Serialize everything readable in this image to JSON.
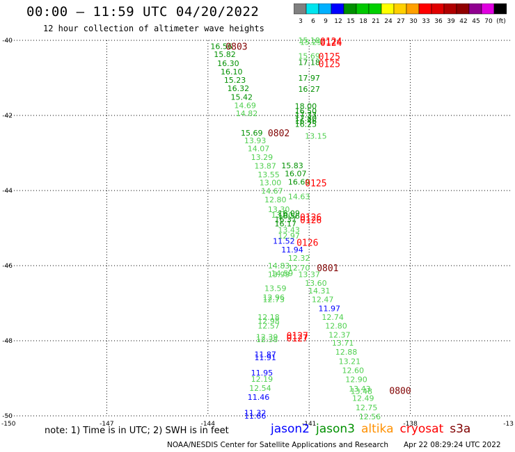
{
  "header": {
    "title": "00:00 – 11:59 UTC 04/20/2022",
    "subtitle": "12 hour collection of altimeter wave heights"
  },
  "color_scale": {
    "labels": [
      "3",
      "6",
      "9",
      "12",
      "15",
      "18",
      "21",
      "24",
      "27",
      "30",
      "33",
      "36",
      "39",
      "42",
      "45",
      "70",
      "(ft)"
    ],
    "colors": [
      "#808080",
      "#00e5ee",
      "#00b0ff",
      "#0000ff",
      "#009000",
      "#00c800",
      "#00d000",
      "#ffff00",
      "#ffd000",
      "#ffa000",
      "#ff0000",
      "#e00000",
      "#b00000",
      "#900000",
      "#900090",
      "#e000e0",
      "#000000"
    ]
  },
  "note": "note:  1) Time is in UTC; 2) SWH is in feet",
  "satellites": [
    {
      "name": "jason2",
      "color": "#0000ff"
    },
    {
      "name": "jason3",
      "color": "#009000"
    },
    {
      "name": "altika",
      "color": "#ff9000"
    },
    {
      "name": "cryosat",
      "color": "#ff0000"
    },
    {
      "name": "s3a",
      "color": "#800000"
    }
  ],
  "footer": {
    "credit": "NOAA/NESDIS Center for Satellite Applications and Research",
    "timestamp": "Apr 22 08:29:24 UTC 2022"
  },
  "chart_data": {
    "type": "scatter",
    "xlim": [
      -150,
      -135
    ],
    "ylim": [
      -50,
      -40
    ],
    "x_ticks": [
      -147,
      -144,
      -141,
      -138
    ],
    "x_tick_labels": [
      "-147",
      "-144",
      "-141",
      "-138"
    ],
    "y_ticks": [
      -40,
      -42,
      -44,
      -46,
      -48,
      -50
    ],
    "y_tick_labels": [
      "-40",
      "-42",
      "-44",
      "-46",
      "-48",
      "-50"
    ],
    "corner_labels": {
      "left": "-150",
      "right": "-13"
    },
    "grid": true,
    "points": [
      {
        "lon": -143.6,
        "lat": -40.16,
        "v": "16.56",
        "c": "#009000"
      },
      {
        "lon": -143.5,
        "lat": -40.37,
        "v": "15.82",
        "c": "#009000"
      },
      {
        "lon": -143.4,
        "lat": -40.61,
        "v": "16.30",
        "c": "#009000"
      },
      {
        "lon": -143.3,
        "lat": -40.83,
        "v": "16.10",
        "c": "#009000"
      },
      {
        "lon": -143.2,
        "lat": -41.06,
        "v": "15.23",
        "c": "#009000"
      },
      {
        "lon": -143.1,
        "lat": -41.28,
        "v": "16.32",
        "c": "#009000"
      },
      {
        "lon": -143.0,
        "lat": -41.51,
        "v": "15.42",
        "c": "#009000"
      },
      {
        "lon": -142.9,
        "lat": -41.73,
        "v": "14.69",
        "c": "#50d050"
      },
      {
        "lon": -142.85,
        "lat": -41.94,
        "v": "14.82",
        "c": "#50d050"
      },
      {
        "lon": -141.0,
        "lat": -40.0,
        "v": "15.18",
        "c": "#50d050"
      },
      {
        "lon": -140.95,
        "lat": -40.05,
        "v": "15.29",
        "c": "#50d050"
      },
      {
        "lon": -141.0,
        "lat": -40.42,
        "v": "15.69",
        "c": "#50d050"
      },
      {
        "lon": -141.0,
        "lat": -40.58,
        "v": "17.18",
        "c": "#009000"
      },
      {
        "lon": -141.0,
        "lat": -41.0,
        "v": "17.97",
        "c": "#009000"
      },
      {
        "lon": -141.0,
        "lat": -41.3,
        "v": "16.27",
        "c": "#009000"
      },
      {
        "lon": -141.1,
        "lat": -41.75,
        "v": "18.00",
        "c": "#009000"
      },
      {
        "lon": -141.1,
        "lat": -41.88,
        "v": "16.50",
        "c": "#009000"
      },
      {
        "lon": -141.1,
        "lat": -41.98,
        "v": "17.33",
        "c": "#009000"
      },
      {
        "lon": -141.1,
        "lat": -42.07,
        "v": "17.80",
        "c": "#009000"
      },
      {
        "lon": -141.1,
        "lat": -42.15,
        "v": "16.46",
        "c": "#009000"
      },
      {
        "lon": -141.1,
        "lat": -42.23,
        "v": "16.25",
        "c": "#009000"
      },
      {
        "lon": -140.8,
        "lat": -42.55,
        "v": "13.15",
        "c": "#50d050"
      },
      {
        "lon": -142.7,
        "lat": -42.46,
        "v": "15.69",
        "c": "#009000"
      },
      {
        "lon": -142.6,
        "lat": -42.67,
        "v": "13.93",
        "c": "#50d050"
      },
      {
        "lon": -142.5,
        "lat": -42.88,
        "v": "14.07",
        "c": "#50d050"
      },
      {
        "lon": -142.4,
        "lat": -43.11,
        "v": "13.29",
        "c": "#50d050"
      },
      {
        "lon": -142.3,
        "lat": -43.34,
        "v": "13.87",
        "c": "#50d050"
      },
      {
        "lon": -142.2,
        "lat": -43.57,
        "v": "13.55",
        "c": "#50d050"
      },
      {
        "lon": -142.15,
        "lat": -43.79,
        "v": "13.00",
        "c": "#50d050"
      },
      {
        "lon": -142.1,
        "lat": -44.01,
        "v": "14.67",
        "c": "#50d050"
      },
      {
        "lon": -142.0,
        "lat": -44.24,
        "v": "12.80",
        "c": "#50d050"
      },
      {
        "lon": -141.5,
        "lat": -43.33,
        "v": "15.83",
        "c": "#009000"
      },
      {
        "lon": -141.4,
        "lat": -43.55,
        "v": "16.07",
        "c": "#009000"
      },
      {
        "lon": -141.3,
        "lat": -43.77,
        "v": "16.69",
        "c": "#009000"
      },
      {
        "lon": -141.3,
        "lat": -44.16,
        "v": "14.63",
        "c": "#50d050"
      },
      {
        "lon": -141.9,
        "lat": -44.5,
        "v": "13.30",
        "c": "#50d050"
      },
      {
        "lon": -141.8,
        "lat": -44.65,
        "v": "13.00",
        "c": "#50d050"
      },
      {
        "lon": -141.6,
        "lat": -44.6,
        "v": "16.09",
        "c": "#009000"
      },
      {
        "lon": -141.6,
        "lat": -44.68,
        "v": "16.56",
        "c": "#009000"
      },
      {
        "lon": -141.7,
        "lat": -44.77,
        "v": "16.37",
        "c": "#009000"
      },
      {
        "lon": -141.7,
        "lat": -44.88,
        "v": "16.17",
        "c": "#009000"
      },
      {
        "lon": -141.6,
        "lat": -45.05,
        "v": "13.43",
        "c": "#50d050"
      },
      {
        "lon": -141.6,
        "lat": -45.2,
        "v": "12.97",
        "c": "#50d050"
      },
      {
        "lon": -141.75,
        "lat": -45.34,
        "v": "11.52",
        "c": "#0000ff"
      },
      {
        "lon": -141.5,
        "lat": -45.57,
        "v": "11.94",
        "c": "#0000ff"
      },
      {
        "lon": -141.3,
        "lat": -45.8,
        "v": "12.32",
        "c": "#50d050"
      },
      {
        "lon": -141.9,
        "lat": -46.0,
        "v": "14.83",
        "c": "#50d050"
      },
      {
        "lon": -141.3,
        "lat": -46.06,
        "v": "12.70",
        "c": "#50d050"
      },
      {
        "lon": -141.8,
        "lat": -46.2,
        "v": "14.59",
        "c": "#50d050"
      },
      {
        "lon": -141.9,
        "lat": -46.23,
        "v": "13.99",
        "c": "#50d050"
      },
      {
        "lon": -141.0,
        "lat": -46.23,
        "v": "13.37",
        "c": "#50d050"
      },
      {
        "lon": -140.8,
        "lat": -46.46,
        "v": "13.60",
        "c": "#50d050"
      },
      {
        "lon": -140.7,
        "lat": -46.67,
        "v": "14.31",
        "c": "#50d050"
      },
      {
        "lon": -140.6,
        "lat": -46.9,
        "v": "12.47",
        "c": "#50d050"
      },
      {
        "lon": -140.4,
        "lat": -47.14,
        "v": "11.97",
        "c": "#0000ff"
      },
      {
        "lon": -140.3,
        "lat": -47.37,
        "v": "12.74",
        "c": "#50d050"
      },
      {
        "lon": -140.2,
        "lat": -47.6,
        "v": "12.80",
        "c": "#50d050"
      },
      {
        "lon": -140.1,
        "lat": -47.84,
        "v": "12.37",
        "c": "#50d050"
      },
      {
        "lon": -140.0,
        "lat": -48.06,
        "v": "13.71",
        "c": "#50d050"
      },
      {
        "lon": -142.0,
        "lat": -46.6,
        "v": "13.59",
        "c": "#50d050"
      },
      {
        "lon": -142.05,
        "lat": -46.84,
        "v": "12.96",
        "c": "#50d050"
      },
      {
        "lon": -142.05,
        "lat": -46.9,
        "v": "12.73",
        "c": "#50d050"
      },
      {
        "lon": -142.2,
        "lat": -47.37,
        "v": "12.18",
        "c": "#50d050"
      },
      {
        "lon": -142.2,
        "lat": -47.47,
        "v": "12.98",
        "c": "#50d050"
      },
      {
        "lon": -142.2,
        "lat": -47.6,
        "v": "12.57",
        "c": "#50d050"
      },
      {
        "lon": -142.25,
        "lat": -47.9,
        "v": "12.39",
        "c": "#50d050"
      },
      {
        "lon": -142.25,
        "lat": -47.96,
        "v": "12.38",
        "c": "#50d050"
      },
      {
        "lon": -142.3,
        "lat": -48.36,
        "v": "11.87",
        "c": "#0000ff"
      },
      {
        "lon": -142.3,
        "lat": -48.44,
        "v": "11.91",
        "c": "#0000ff"
      },
      {
        "lon": -142.4,
        "lat": -48.85,
        "v": "11.95",
        "c": "#0000ff"
      },
      {
        "lon": -142.4,
        "lat": -49.02,
        "v": "12.19",
        "c": "#50d050"
      },
      {
        "lon": -142.45,
        "lat": -49.26,
        "v": "12.54",
        "c": "#50d050"
      },
      {
        "lon": -142.5,
        "lat": -49.5,
        "v": "11.46",
        "c": "#0000ff"
      },
      {
        "lon": -142.6,
        "lat": -49.92,
        "v": "11.32",
        "c": "#0000ff"
      },
      {
        "lon": -142.6,
        "lat": -50.0,
        "v": "11.66",
        "c": "#0000ff"
      },
      {
        "lon": -139.9,
        "lat": -48.3,
        "v": "12.88",
        "c": "#50d050"
      },
      {
        "lon": -139.8,
        "lat": -48.55,
        "v": "13.21",
        "c": "#50d050"
      },
      {
        "lon": -139.7,
        "lat": -48.79,
        "v": "12.60",
        "c": "#50d050"
      },
      {
        "lon": -139.6,
        "lat": -49.03,
        "v": "12.90",
        "c": "#50d050"
      },
      {
        "lon": -139.5,
        "lat": -49.28,
        "v": "13.43",
        "c": "#50d050"
      },
      {
        "lon": -139.45,
        "lat": -49.34,
        "v": "13.48",
        "c": "#50d050"
      },
      {
        "lon": -139.4,
        "lat": -49.53,
        "v": "12.49",
        "c": "#50d050"
      },
      {
        "lon": -139.3,
        "lat": -49.78,
        "v": "12.75",
        "c": "#50d050"
      },
      {
        "lon": -139.2,
        "lat": -50.02,
        "v": "12.56",
        "c": "#50d050"
      }
    ],
    "time_labels": [
      {
        "lon": -140.35,
        "lat": -40.02,
        "t": "0124",
        "c": "#ff0000"
      },
      {
        "lon": -140.35,
        "lat": -40.06,
        "t": "0124",
        "c": "#ff0000"
      },
      {
        "lon": -143.15,
        "lat": -40.16,
        "t": "0803",
        "c": "#800000"
      },
      {
        "lon": -140.4,
        "lat": -40.43,
        "t": "0125",
        "c": "#ff0000"
      },
      {
        "lon": -140.4,
        "lat": -40.62,
        "t": "0125",
        "c": "#ff0000"
      },
      {
        "lon": -141.9,
        "lat": -42.46,
        "t": "0802",
        "c": "#800000"
      },
      {
        "lon": -140.8,
        "lat": -43.8,
        "t": "0125",
        "c": "#ff0000"
      },
      {
        "lon": -140.95,
        "lat": -44.7,
        "t": "0126",
        "c": "#ff0000"
      },
      {
        "lon": -140.95,
        "lat": -44.78,
        "t": "0126",
        "c": "#ff0000"
      },
      {
        "lon": -141.05,
        "lat": -45.38,
        "t": "0126",
        "c": "#ff0000"
      },
      {
        "lon": -140.45,
        "lat": -46.06,
        "t": "0801",
        "c": "#800000"
      },
      {
        "lon": -141.35,
        "lat": -47.86,
        "t": "0127",
        "c": "#ff0000"
      },
      {
        "lon": -141.35,
        "lat": -47.93,
        "t": "0127",
        "c": "#ff0000"
      },
      {
        "lon": -138.3,
        "lat": -49.32,
        "t": "0800",
        "c": "#800000"
      }
    ]
  }
}
